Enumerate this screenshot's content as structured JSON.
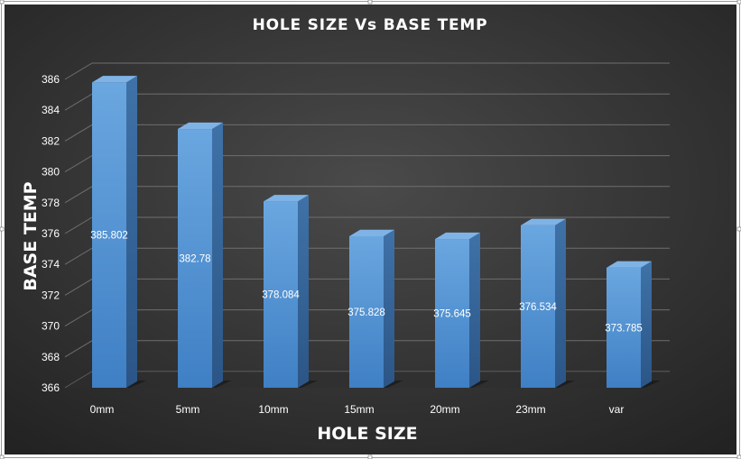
{
  "chart_data": {
    "type": "bar",
    "title": "HOLE SIZE Vs BASE TEMP",
    "xlabel": "HOLE SIZE",
    "ylabel": "BASE TEMP",
    "categories": [
      "0mm",
      "5mm",
      "10mm",
      "15mm",
      "20mm",
      "23mm",
      "var"
    ],
    "values": [
      385.802,
      382.78,
      378.084,
      375.828,
      375.645,
      376.534,
      373.785
    ],
    "data_labels": [
      "385.802",
      "382.78",
      "378.084",
      "375.828",
      "375.645",
      "376.534",
      "373.785"
    ],
    "ylim": [
      366,
      386
    ],
    "yticks": [
      "366",
      "368",
      "370",
      "372",
      "374",
      "376",
      "378",
      "380",
      "382",
      "384",
      "386"
    ],
    "grid": true,
    "legend": "none",
    "bar_color": "#5b9bd5",
    "background": "#333333"
  }
}
